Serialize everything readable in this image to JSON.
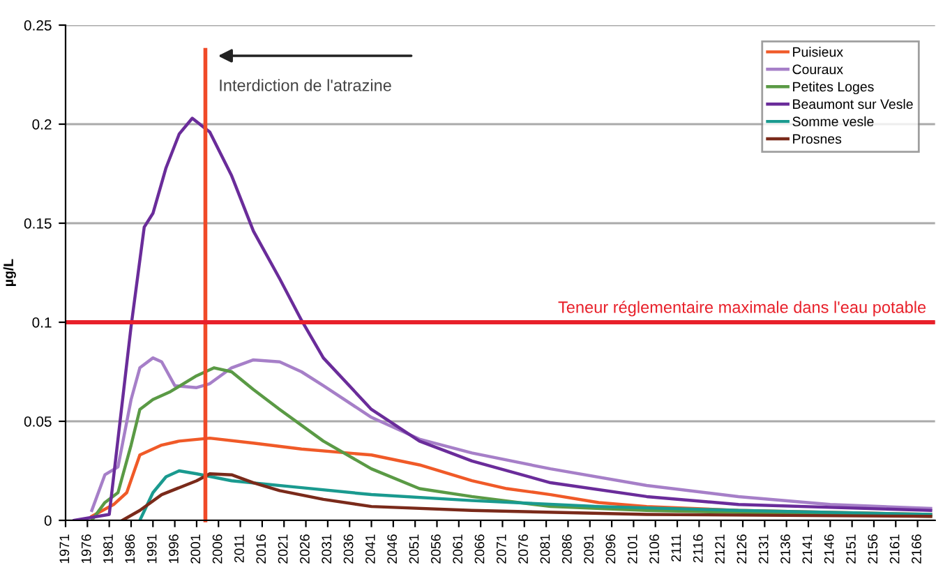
{
  "chart_data": {
    "type": "line",
    "ylabel": "µg/L",
    "xlim": [
      1971,
      2170
    ],
    "ylim": [
      0,
      0.25
    ],
    "xticks": [
      1971,
      1976,
      1981,
      1986,
      1991,
      1996,
      2001,
      2006,
      2011,
      2016,
      2021,
      2026,
      2031,
      2036,
      2041,
      2046,
      2051,
      2056,
      2061,
      2066,
      2071,
      2076,
      2081,
      2086,
      2091,
      2096,
      2101,
      2106,
      2111,
      2116,
      2121,
      2126,
      2131,
      2136,
      2141,
      2146,
      2151,
      2156,
      2161,
      2166
    ],
    "yticks": [
      0,
      0.05,
      0.1,
      0.15,
      0.2,
      0.25
    ],
    "grid": "y",
    "legend": "top right",
    "line_style": "solid",
    "ref_lines": [
      {
        "axis": "x",
        "value": 2003,
        "label": "Interdiction de l'atrazine",
        "color": "#f04a28"
      },
      {
        "axis": "y",
        "value": 0.1,
        "label": "Teneur réglementaire maximale dans l'eau potable",
        "color": "#e8202a"
      }
    ],
    "series": [
      {
        "name": "Puisieux",
        "color": "#f05a28",
        "x": [
          1977,
          1982,
          1985,
          1988,
          1993,
          1997,
          2004,
          2014,
          2025,
          2041,
          2052,
          2064,
          2072,
          2082,
          2093,
          2104,
          2125,
          2169
        ],
        "values": [
          0.002,
          0.008,
          0.014,
          0.033,
          0.038,
          0.04,
          0.0415,
          0.039,
          0.036,
          0.033,
          0.028,
          0.02,
          0.016,
          0.013,
          0.009,
          0.007,
          0.005,
          0.003
        ]
      },
      {
        "name": "Couraux",
        "color": "#a67fc8",
        "x": [
          1977,
          1980,
          1983,
          1986,
          1988,
          1991,
          1993,
          1996,
          2001,
          2004,
          2009,
          2014,
          2020,
          2025,
          2030,
          2041,
          2052,
          2064,
          2082,
          2104,
          2125,
          2146,
          2169
        ],
        "values": [
          0.005,
          0.023,
          0.027,
          0.061,
          0.077,
          0.082,
          0.08,
          0.068,
          0.067,
          0.069,
          0.077,
          0.081,
          0.08,
          0.075,
          0.068,
          0.052,
          0.041,
          0.034,
          0.026,
          0.0176,
          0.012,
          0.008,
          0.006
        ]
      },
      {
        "name": "Petites Loges",
        "color": "#5a9a45",
        "x": [
          1977,
          1980,
          1983,
          1986,
          1988,
          1991,
          1995,
          2001,
          2005,
          2009,
          2014,
          2020,
          2030,
          2041,
          2052,
          2064,
          2082,
          2104,
          2169
        ],
        "values": [
          0,
          0.009,
          0.014,
          0.038,
          0.056,
          0.061,
          0.065,
          0.073,
          0.077,
          0.075,
          0.066,
          0.056,
          0.04,
          0.026,
          0.016,
          0.012,
          0.007,
          0.005,
          0.002
        ]
      },
      {
        "name": "Beaumont sur Vesle",
        "color": "#6a2c9a",
        "x": [
          1973,
          1981,
          1986,
          1989,
          1991,
          1994,
          1997,
          2000,
          2004,
          2009,
          2014,
          2020,
          2025,
          2030,
          2041,
          2052,
          2064,
          2082,
          2104,
          2125,
          2169
        ],
        "values": [
          0,
          0.003,
          0.098,
          0.148,
          0.155,
          0.178,
          0.195,
          0.203,
          0.196,
          0.174,
          0.146,
          0.122,
          0.101,
          0.082,
          0.056,
          0.04,
          0.03,
          0.019,
          0.012,
          0.008,
          0.005
        ]
      },
      {
        "name": "Somme vesle",
        "color": "#1a9a8f",
        "x": [
          1988,
          1991,
          1994,
          1997,
          2001,
          2009,
          2025,
          2041,
          2064,
          2093,
          2125,
          2169
        ],
        "values": [
          0,
          0.014,
          0.022,
          0.025,
          0.0235,
          0.02,
          0.0165,
          0.013,
          0.01,
          0.007,
          0.005,
          0.003
        ]
      },
      {
        "name": "Prosnes",
        "color": "#7a2a1a",
        "x": [
          1984,
          1988,
          1993,
          2001,
          2004,
          2009,
          2014,
          2020,
          2030,
          2041,
          2064,
          2104,
          2169
        ],
        "values": [
          0,
          0.005,
          0.013,
          0.02,
          0.0235,
          0.023,
          0.019,
          0.015,
          0.0106,
          0.007,
          0.005,
          0.003,
          0.002
        ]
      }
    ]
  }
}
